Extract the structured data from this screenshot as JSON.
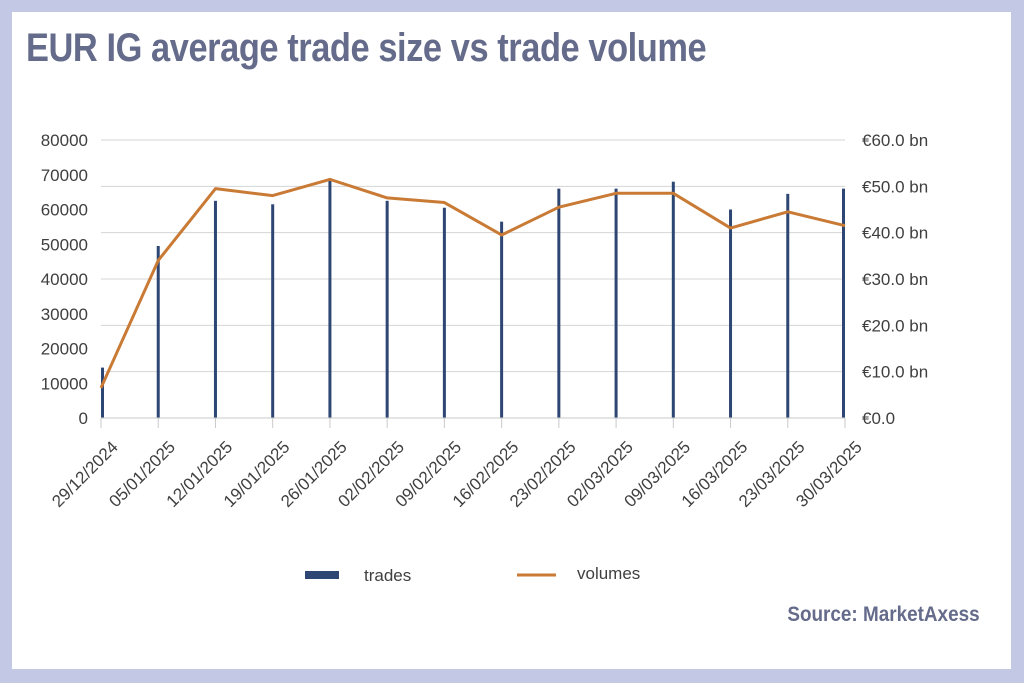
{
  "title": "EUR IG average trade size vs trade volume",
  "source": "Source: MarketAxess",
  "colors": {
    "trades": "#2d4673",
    "volumes": "#c97a35",
    "grid": "#d4d4d4",
    "text": "#656b8a",
    "background": "#c3c8e4"
  },
  "chart_data": {
    "type": "bar",
    "categories": [
      "29/12/2024",
      "05/01/2025",
      "12/01/2025",
      "19/01/2025",
      "26/01/2025",
      "02/02/2025",
      "09/02/2025",
      "16/02/2025",
      "23/02/2025",
      "02/03/2025",
      "09/03/2025",
      "16/03/2025",
      "23/03/2025",
      "30/03/2025"
    ],
    "y_left": {
      "ticks": [
        "80000",
        "70000",
        "60000",
        "50000",
        "40000",
        "30000",
        "20000",
        "10000",
        "0"
      ],
      "ylim": [
        0,
        80000
      ]
    },
    "y_right": {
      "ticks": [
        "€60.0 bn",
        "€50.0 bn",
        "€40.0 bn",
        "€30.0 bn",
        "€20.0 bn",
        "€10.0 bn",
        "€0.0"
      ],
      "ylim": [
        0,
        60
      ]
    },
    "series": [
      {
        "name": "trades",
        "type": "bar",
        "axis": "left",
        "values": [
          14500,
          49500,
          62500,
          61500,
          69000,
          62500,
          60500,
          56500,
          66000,
          66000,
          68000,
          60000,
          64500,
          66000
        ]
      },
      {
        "name": "volumes",
        "type": "line",
        "axis": "right",
        "values": [
          6.5,
          34,
          49.5,
          48,
          51.5,
          47.5,
          46.5,
          39.5,
          45.5,
          48.5,
          48.5,
          41,
          44.5,
          41.5
        ]
      }
    ],
    "legend": {
      "position": "bottom",
      "labels": [
        "trades",
        "volumes"
      ]
    },
    "grid": true
  }
}
